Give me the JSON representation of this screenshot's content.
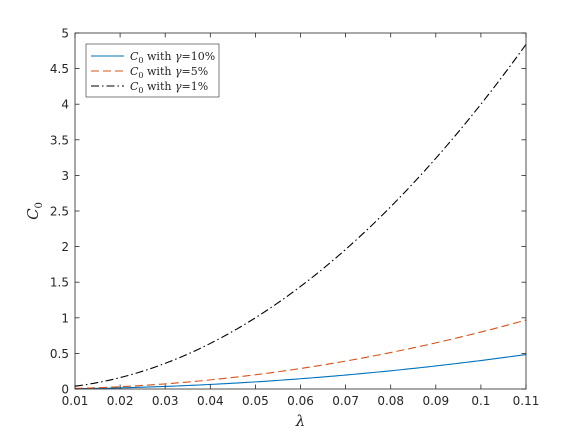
{
  "chart_data": {
    "type": "line",
    "xlabel": "λ",
    "ylabel_main": "C",
    "ylabel_sub": "0",
    "xlim": [
      0.01,
      0.11
    ],
    "ylim": [
      0,
      5
    ],
    "xticks": [
      "0.01",
      "0.02",
      "0.03",
      "0.04",
      "0.05",
      "0.06",
      "0.07",
      "0.08",
      "0.09",
      "0.1",
      "0.11"
    ],
    "yticks": [
      "0",
      "0.5",
      "1",
      "1.5",
      "2",
      "2.5",
      "3",
      "3.5",
      "4",
      "4.5",
      "5"
    ],
    "grid": false,
    "legend_position": "top-left",
    "x": [
      0.01,
      0.02,
      0.03,
      0.04,
      0.05,
      0.06,
      0.07,
      0.08,
      0.09,
      0.1,
      0.11
    ],
    "series": [
      {
        "legend_sym": "C",
        "legend_sub": "0",
        "legend_mid": " with ",
        "legend_gamma": "γ",
        "legend_val": "=10%",
        "color": "#0072BD",
        "dash": "solid",
        "values": [
          0.004,
          0.016,
          0.036,
          0.064,
          0.1,
          0.144,
          0.196,
          0.256,
          0.324,
          0.4,
          0.484
        ]
      },
      {
        "legend_sym": "C",
        "legend_sub": "0",
        "legend_mid": " with ",
        "legend_gamma": "γ",
        "legend_val": "=5%",
        "color": "#D95319",
        "dash": "dashed",
        "values": [
          0.008,
          0.032,
          0.072,
          0.128,
          0.2,
          0.288,
          0.392,
          0.512,
          0.648,
          0.8,
          0.968
        ]
      },
      {
        "legend_sym": "C",
        "legend_sub": "0",
        "legend_mid": " with ",
        "legend_gamma": "γ",
        "legend_val": "=1%",
        "color": "#000000",
        "dash": "dashdot",
        "values": [
          0.04,
          0.16,
          0.36,
          0.64,
          1.0,
          1.44,
          1.96,
          2.56,
          3.24,
          4.0,
          4.84
        ]
      }
    ]
  }
}
